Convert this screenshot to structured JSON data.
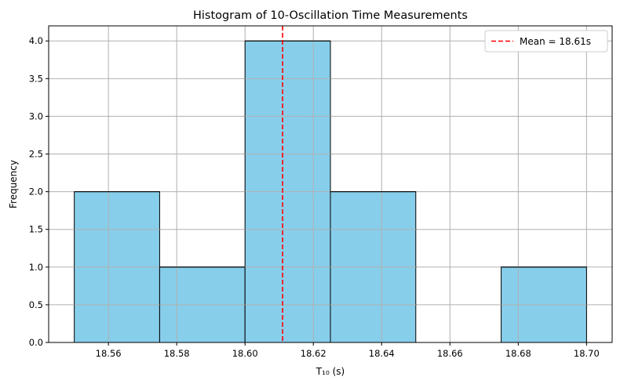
{
  "chart_data": {
    "type": "bar",
    "subtype": "histogram",
    "title": "Histogram of 10-Oscillation Time Measurements",
    "xlabel": "T₁₀ (s)",
    "ylabel": "Frequency",
    "xlim": [
      18.5425,
      18.7075
    ],
    "ylim": [
      0,
      4.2
    ],
    "xticks": [
      "18.56",
      "18.58",
      "18.60",
      "18.62",
      "18.64",
      "18.66",
      "18.68",
      "18.70"
    ],
    "xtick_values": [
      18.56,
      18.58,
      18.6,
      18.62,
      18.64,
      18.66,
      18.68,
      18.7
    ],
    "yticks": [
      "0.0",
      "0.5",
      "1.0",
      "1.5",
      "2.0",
      "2.5",
      "3.0",
      "3.5",
      "4.0"
    ],
    "ytick_values": [
      0.0,
      0.5,
      1.0,
      1.5,
      2.0,
      2.5,
      3.0,
      3.5,
      4.0
    ],
    "bins": [
      {
        "start": 18.55,
        "end": 18.575,
        "count": 2
      },
      {
        "start": 18.575,
        "end": 18.6,
        "count": 1
      },
      {
        "start": 18.6,
        "end": 18.625,
        "count": 4
      },
      {
        "start": 18.625,
        "end": 18.65,
        "count": 2
      },
      {
        "start": 18.65,
        "end": 18.675,
        "count": 0
      },
      {
        "start": 18.675,
        "end": 18.7,
        "count": 1
      }
    ],
    "mean_line": {
      "value": 18.611,
      "label": "Mean = 18.61s",
      "color": "#ff0000",
      "style": "dashed"
    },
    "bar_color": "#87ceeb",
    "bar_edge_color": "#000000",
    "grid": true,
    "legend_position": "top-right"
  }
}
